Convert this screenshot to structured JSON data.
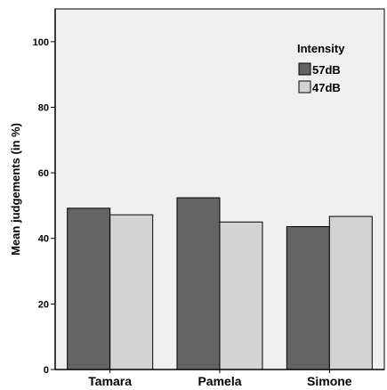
{
  "chart_data": {
    "type": "bar",
    "categories": [
      "Tamara",
      "Pamela",
      "Simone"
    ],
    "series": [
      {
        "name": "57dB",
        "values": [
          49.2,
          52.4,
          43.6
        ],
        "color": "#636363"
      },
      {
        "name": "47dB",
        "values": [
          47.2,
          45.0,
          46.7
        ],
        "color": "#d3d3d3"
      }
    ],
    "title": "",
    "xlabel": "",
    "ylabel": "Mean judgements (in %)",
    "ylim": [
      0,
      110
    ],
    "yticks": [
      0,
      20,
      40,
      60,
      80,
      100
    ],
    "legend": {
      "title": "Intensity",
      "position": "top-right"
    },
    "plot_background": "#f0f0f0",
    "grid": false
  }
}
